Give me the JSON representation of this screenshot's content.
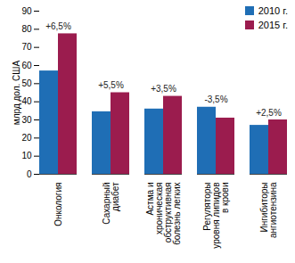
{
  "chart_data": {
    "type": "bar",
    "y_label": "млрд дол. США",
    "categories": [
      "Онкология",
      "Сахарный диабет",
      "Астма и хроническая обструктивная болезнь легких",
      "Регуляторы уровня липидов в крови",
      "Ингибиторы ангиотензина"
    ],
    "series": [
      {
        "name": "2010 г.",
        "color": "#1f6eb5",
        "values": [
          57,
          34.5,
          36,
          37,
          27
        ]
      },
      {
        "name": "2015 г.",
        "color": "#9b1c4e",
        "values": [
          77.5,
          45,
          43,
          31,
          30
        ]
      }
    ],
    "annotations": [
      "+6,5%",
      "+5,5%",
      "+3,5%",
      "-3,5%",
      "+2,5%"
    ],
    "ylim": [
      0,
      90
    ],
    "yticks": [
      0,
      10,
      20,
      30,
      40,
      50,
      60,
      70,
      80,
      90
    ],
    "grid": false,
    "legend": "top-right"
  }
}
